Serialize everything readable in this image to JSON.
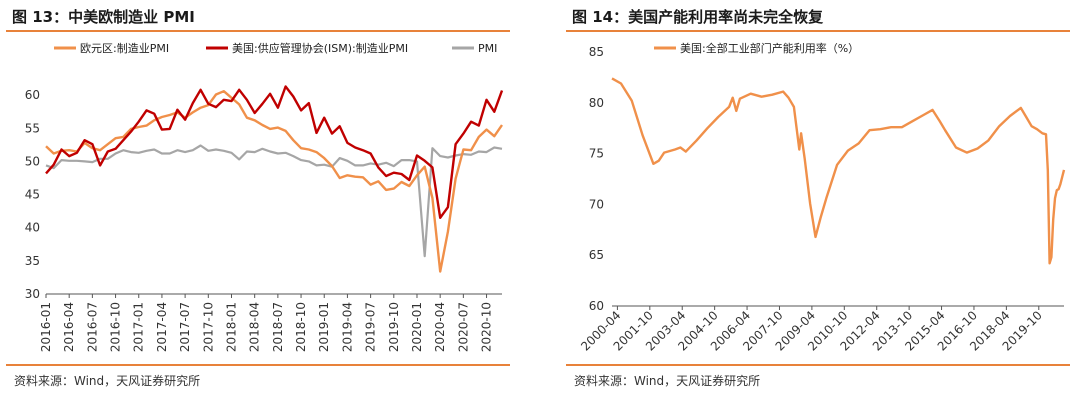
{
  "charts": [
    {
      "title": "图 13：中美欧制造业 PMI",
      "source": "资料来源：Wind，天风证券研究所"
    },
    {
      "title": "图 14：美国产能利用率尚未完全恢复",
      "source": "资料来源：Wind，天风证券研究所"
    }
  ],
  "chart_data": [
    {
      "type": "line",
      "title": "图 13：中美欧制造业 PMI",
      "ylim": [
        30,
        65
      ],
      "yticks": [
        30,
        35,
        40,
        45,
        50,
        55,
        60
      ],
      "x_tick_labels": [
        "2016-01",
        "2016-04",
        "2016-07",
        "2016-10",
        "2017-01",
        "2017-04",
        "2017-07",
        "2017-10",
        "2018-01",
        "2018-04",
        "2018-07",
        "2018-10",
        "2019-01",
        "2019-04",
        "2019-07",
        "2019-10",
        "2020-01",
        "2020-04",
        "2020-07",
        "2020-10"
      ],
      "x_start": "2016-01",
      "n_months": 60,
      "series": [
        {
          "name": "欧元区:制造业PMI",
          "color": "#f0904a",
          "values": [
            52.3,
            51.2,
            51.6,
            51.7,
            51.5,
            52.8,
            52.0,
            51.7,
            52.6,
            53.5,
            53.7,
            54.9,
            55.2,
            55.4,
            56.2,
            56.7,
            57.0,
            57.4,
            56.6,
            57.4,
            58.1,
            58.5,
            60.1,
            60.6,
            59.6,
            58.6,
            56.6,
            56.2,
            55.5,
            54.9,
            55.1,
            54.6,
            53.2,
            52.0,
            51.8,
            51.4,
            50.5,
            49.3,
            47.5,
            47.9,
            47.7,
            47.6,
            46.5,
            47.0,
            45.7,
            45.9,
            46.9,
            46.3,
            47.9,
            49.2,
            44.5,
            33.4,
            39.4,
            47.4,
            51.8,
            51.7,
            53.7,
            54.8,
            53.8,
            55.5
          ]
        },
        {
          "name": "美国:供应管理协会(ISM):制造业PMI",
          "color": "#c00000",
          "values": [
            48.2,
            49.5,
            51.8,
            50.8,
            51.3,
            53.2,
            52.6,
            49.4,
            51.5,
            51.9,
            53.2,
            54.5,
            56.0,
            57.7,
            57.2,
            54.8,
            54.9,
            57.8,
            56.3,
            58.8,
            60.8,
            58.7,
            58.2,
            59.3,
            59.1,
            60.8,
            59.3,
            57.3,
            58.7,
            60.2,
            58.1,
            61.3,
            59.8,
            57.7,
            58.8,
            54.3,
            56.6,
            54.2,
            55.3,
            52.8,
            52.1,
            51.7,
            51.2,
            49.1,
            47.8,
            48.3,
            48.1,
            47.2,
            50.9,
            50.1,
            49.1,
            41.5,
            43.1,
            52.6,
            54.2,
            56.0,
            55.4,
            59.3,
            57.5,
            60.7
          ]
        },
        {
          "name": "PMI",
          "color": "#a6a6a6",
          "values": [
            49.4,
            49.0,
            50.2,
            50.1,
            50.1,
            50.0,
            49.9,
            50.4,
            50.4,
            51.2,
            51.7,
            51.4,
            51.3,
            51.6,
            51.8,
            51.2,
            51.2,
            51.7,
            51.4,
            51.7,
            52.4,
            51.6,
            51.8,
            51.6,
            51.3,
            50.3,
            51.5,
            51.4,
            51.9,
            51.5,
            51.2,
            51.3,
            50.8,
            50.2,
            50.0,
            49.4,
            49.5,
            49.2,
            50.5,
            50.1,
            49.4,
            49.4,
            49.7,
            49.5,
            49.8,
            49.3,
            50.2,
            50.2,
            50.0,
            35.7,
            52.0,
            50.8,
            50.6,
            50.9,
            51.1,
            51.0,
            51.5,
            51.4,
            52.1,
            51.9
          ]
        }
      ]
    },
    {
      "type": "line",
      "title": "图 14：美国产能利用率尚未完全恢复",
      "ylim": [
        60,
        85
      ],
      "yticks": [
        60,
        65,
        70,
        75,
        80,
        85
      ],
      "x_tick_labels": [
        "2000-04",
        "2001-10",
        "2003-04",
        "2004-10",
        "2006-04",
        "2007-10",
        "2009-04",
        "2010-10",
        "2012-04",
        "2013-10",
        "2015-04",
        "2016-10",
        "2018-04",
        "2019-10"
      ],
      "series": [
        {
          "name": "美国:全部工业部门产能利用率（%）",
          "color": "#f0904a",
          "points": [
            [
              "2000-01",
              82.4
            ],
            [
              "2000-06",
              81.9
            ],
            [
              "2000-12",
              80.2
            ],
            [
              "2001-06",
              76.8
            ],
            [
              "2001-12",
              74.0
            ],
            [
              "2002-03",
              74.3
            ],
            [
              "2002-06",
              75.1
            ],
            [
              "2002-12",
              75.4
            ],
            [
              "2003-03",
              75.6
            ],
            [
              "2003-06",
              75.2
            ],
            [
              "2003-12",
              76.3
            ],
            [
              "2004-06",
              77.5
            ],
            [
              "2004-12",
              78.6
            ],
            [
              "2005-06",
              79.6
            ],
            [
              "2005-08",
              80.5
            ],
            [
              "2005-10",
              79.2
            ],
            [
              "2005-12",
              80.4
            ],
            [
              "2006-06",
              80.9
            ],
            [
              "2006-12",
              80.6
            ],
            [
              "2007-06",
              80.8
            ],
            [
              "2007-12",
              81.1
            ],
            [
              "2008-03",
              80.5
            ],
            [
              "2008-06",
              79.6
            ],
            [
              "2008-09",
              75.4
            ],
            [
              "2008-10",
              77.0
            ],
            [
              "2008-12",
              74.5
            ],
            [
              "2009-03",
              70.1
            ],
            [
              "2009-06",
              66.8
            ],
            [
              "2009-09",
              68.8
            ],
            [
              "2009-12",
              70.6
            ],
            [
              "2010-06",
              73.9
            ],
            [
              "2010-12",
              75.3
            ],
            [
              "2011-06",
              76.0
            ],
            [
              "2011-12",
              77.3
            ],
            [
              "2012-06",
              77.4
            ],
            [
              "2012-12",
              77.6
            ],
            [
              "2013-06",
              77.6
            ],
            [
              "2013-12",
              78.2
            ],
            [
              "2014-06",
              78.8
            ],
            [
              "2014-11",
              79.3
            ],
            [
              "2015-03",
              78.2
            ],
            [
              "2015-06",
              77.3
            ],
            [
              "2015-12",
              75.6
            ],
            [
              "2016-06",
              75.1
            ],
            [
              "2016-12",
              75.5
            ],
            [
              "2017-06",
              76.3
            ],
            [
              "2017-12",
              77.7
            ],
            [
              "2018-06",
              78.7
            ],
            [
              "2018-12",
              79.5
            ],
            [
              "2019-03",
              78.6
            ],
            [
              "2019-06",
              77.7
            ],
            [
              "2019-09",
              77.4
            ],
            [
              "2019-12",
              77.0
            ],
            [
              "2020-02",
              76.9
            ],
            [
              "2020-03",
              73.4
            ],
            [
              "2020-04",
              64.2
            ],
            [
              "2020-05",
              64.8
            ],
            [
              "2020-06",
              68.5
            ],
            [
              "2020-07",
              70.6
            ],
            [
              "2020-08",
              71.4
            ],
            [
              "2020-09",
              71.5
            ],
            [
              "2020-10",
              72.0
            ],
            [
              "2020-11",
              72.7
            ],
            [
              "2020-12",
              73.4
            ]
          ]
        }
      ]
    }
  ]
}
